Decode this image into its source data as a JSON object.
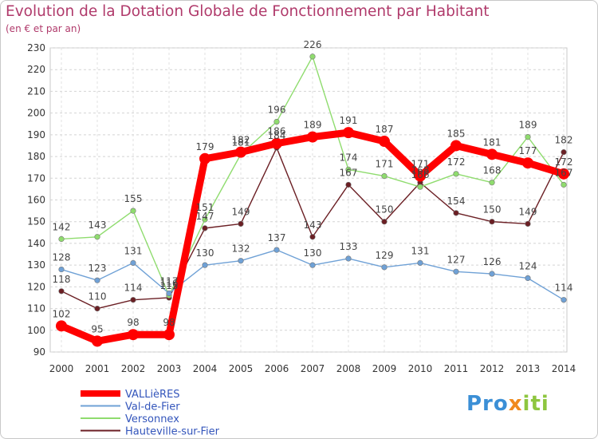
{
  "chart_data": {
    "type": "line",
    "title": "Evolution de la Dotation Globale de Fonctionnement par Habitant",
    "subtitle": "(en € et par an)",
    "xlabel": "",
    "ylabel": "",
    "categories": [
      "2000",
      "2001",
      "2002",
      "2003",
      "2004",
      "2005",
      "2006",
      "2007",
      "2008",
      "2009",
      "2010",
      "2011",
      "2012",
      "2013",
      "2014"
    ],
    "ylim": [
      90,
      230
    ],
    "yticks": [
      90,
      100,
      110,
      120,
      130,
      140,
      150,
      160,
      170,
      180,
      190,
      200,
      210,
      220,
      230
    ],
    "grid": true,
    "legend_position": "bottom-left",
    "series": [
      {
        "name": "VALLièRES",
        "color": "#ff0000",
        "values": [
          102,
          95,
          98,
          98,
          179,
          182,
          186,
          189,
          191,
          187,
          171,
          185,
          181,
          177,
          172
        ],
        "labels": [
          "102",
          "95",
          "98",
          "98",
          "179",
          "182",
          "186",
          "189",
          "191",
          "187",
          "171",
          "185",
          "181",
          "177",
          "172"
        ]
      },
      {
        "name": "Val-de-Fier",
        "color": "#6fa1d6",
        "values": [
          128,
          123,
          131,
          117,
          130,
          132,
          137,
          130,
          133,
          129,
          131,
          127,
          126,
          124,
          114
        ],
        "labels": [
          "128",
          "123",
          "131",
          "117",
          "130",
          "132",
          "137",
          "130",
          "133",
          "129",
          "131",
          "127",
          "126",
          "124",
          "114"
        ]
      },
      {
        "name": "Versonnex",
        "color": "#8fdc6e",
        "values": [
          142,
          143,
          155,
          116,
          151,
          181,
          196,
          226,
          174,
          171,
          166,
          172,
          168,
          189,
          167
        ],
        "labels": [
          "142",
          "143",
          "155",
          "116",
          "151",
          "181",
          "196",
          "226",
          "174",
          "171",
          "166",
          "172",
          "168",
          "189",
          "167"
        ]
      },
      {
        "name": "Hauteville-sur-Fier",
        "color": "#6b1f24",
        "values": [
          118,
          110,
          114,
          115,
          147,
          149,
          184,
          143,
          167,
          150,
          168,
          154,
          150,
          149,
          182
        ],
        "labels": [
          "118",
          "110",
          "114",
          "115",
          "147",
          "149",
          "184",
          "143",
          "167",
          "150",
          "168",
          "154",
          "150",
          "149",
          "182"
        ]
      }
    ]
  },
  "logo": {
    "part1": "Pro",
    "part2": "x",
    "part3": "iti"
  }
}
